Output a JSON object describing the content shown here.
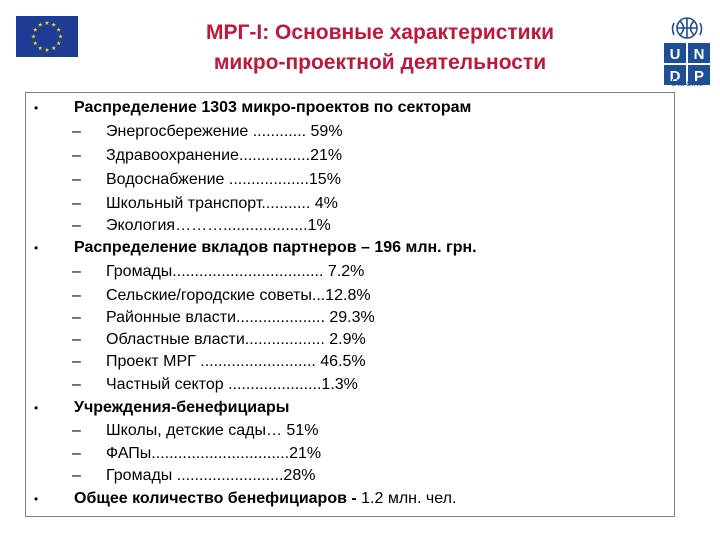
{
  "header": {
    "title_line1": "МРГ-І: Основные характеристики",
    "title_line2": "микро-проектной деятельности",
    "logo_left": "eu-flag",
    "logo_right": "undp-logo",
    "logo_right_letters": [
      "U",
      "N",
      "D",
      "P"
    ],
    "logo_right_caption": "Ukraine"
  },
  "colors": {
    "title": "#c0183a",
    "eu_blue": "#1d3c96",
    "eu_star": "#f5d20a",
    "undp_blue": "#1f4e96"
  },
  "bullet_symbol": "•",
  "dash_symbol": "–",
  "sections": [
    {
      "heading": "Распределение 1303 микро-проектов по секторам",
      "items": [
        "Энергосбережение ............ 59%",
        "Здравоохранение................21%",
        "Водоснабжение ..................15%",
        "Школьный транспорт........... 4%",
        "Экология………...................1%"
      ]
    },
    {
      "heading": "Распределение вкладов партнеров – 196 млн. грн.",
      "items": [
        "Громады.................................. 7.2%",
        "Сельские/городские советы...12.8%",
        "Районные власти.................... 29.3%",
        "Областные власти.................. 2.9%",
        "Проект МРГ ..........................  46.5%",
        "Частный сектор .....................1.3%"
      ]
    },
    {
      "heading": "Учреждения-бенефициары",
      "items": [
        "Школы, детские сады… 51%",
        "ФАПы...............................21%",
        "Громады ........................28%"
      ]
    },
    {
      "heading": "Общее количество бенефициаров - ",
      "heading_tail": "1.2 млн. чел.",
      "items": []
    }
  ]
}
